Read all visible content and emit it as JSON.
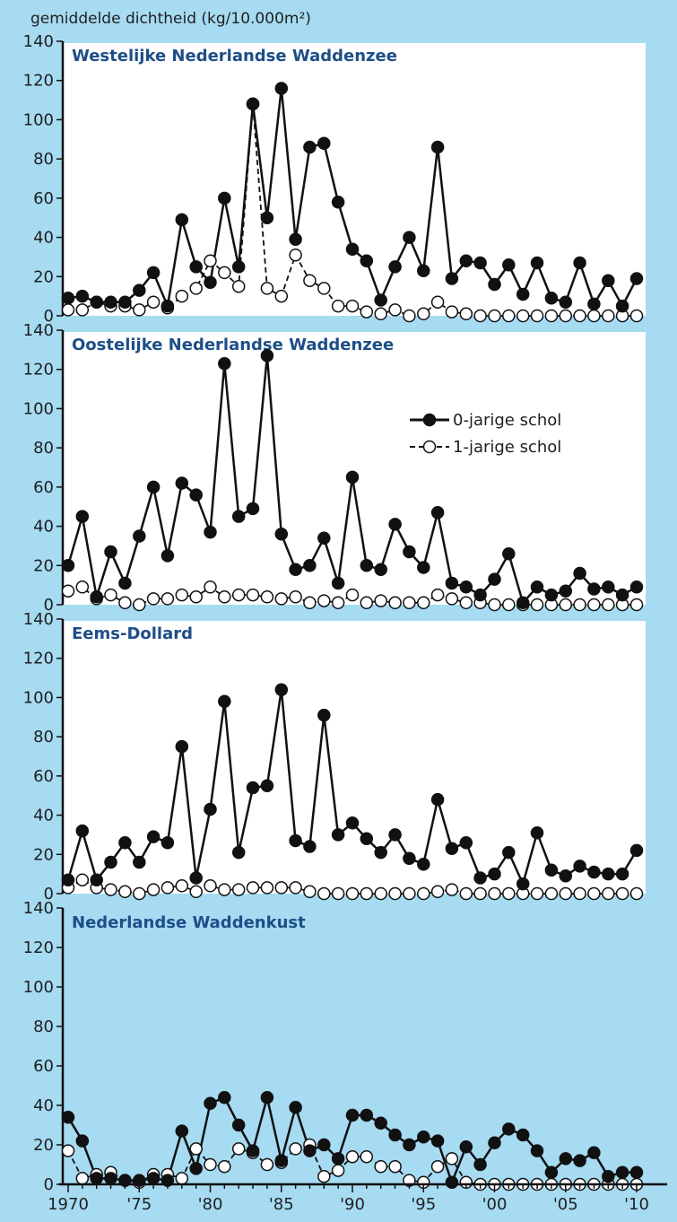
{
  "y_axis_title": "gemiddelde dichtheid (kg/10.000m²)",
  "colors": {
    "background": "#a6dbf2",
    "plot_bg": "#ffffff",
    "title": "#1d4e86",
    "line": "#111111"
  },
  "legend": {
    "series0": "0-jarige schol",
    "series1": "1-jarige schol"
  },
  "x_tick_labels": [
    "1970",
    "'75",
    "'80",
    "'85",
    "'90",
    "'95",
    "'00",
    "'05",
    "'10"
  ],
  "chart_data": [
    {
      "type": "line",
      "title": "Westelijke Nederlandse Waddenzee",
      "x": [
        1970,
        1971,
        1972,
        1973,
        1974,
        1975,
        1976,
        1977,
        1978,
        1979,
        1980,
        1981,
        1982,
        1983,
        1984,
        1985,
        1986,
        1987,
        1988,
        1989,
        1990,
        1991,
        1992,
        1993,
        1994,
        1995,
        1996,
        1997,
        1998,
        1999,
        2000,
        2001,
        2002,
        2003,
        2004,
        2005,
        2006,
        2007,
        2008,
        2009,
        2010
      ],
      "ylim": [
        0,
        140
      ],
      "yticks": [
        0,
        20,
        40,
        60,
        80,
        100,
        120,
        140
      ],
      "series": [
        {
          "name": "0-jarige schol",
          "values": [
            9,
            10,
            7,
            7,
            7,
            13,
            22,
            5,
            49,
            25,
            17,
            60,
            25,
            108,
            50,
            116,
            39,
            86,
            88,
            58,
            34,
            28,
            8,
            25,
            40,
            23,
            86,
            19,
            28,
            27,
            16,
            26,
            11,
            27,
            9,
            7,
            27,
            6,
            18,
            5,
            19
          ]
        },
        {
          "name": "1-jarige schol",
          "values": [
            3,
            3,
            7,
            5,
            5,
            3,
            7,
            4,
            10,
            14,
            28,
            22,
            15,
            108,
            14,
            10,
            31,
            18,
            14,
            5,
            5,
            2,
            1,
            3,
            0,
            1,
            7,
            2,
            1,
            0,
            0,
            0,
            0,
            0,
            0,
            0,
            0,
            0,
            0,
            0,
            0
          ]
        }
      ]
    },
    {
      "type": "line",
      "title": "Oostelijke Nederlandse Waddenzee",
      "x": [
        1970,
        1971,
        1972,
        1973,
        1974,
        1975,
        1976,
        1977,
        1978,
        1979,
        1980,
        1981,
        1982,
        1983,
        1984,
        1985,
        1986,
        1987,
        1988,
        1989,
        1990,
        1991,
        1992,
        1993,
        1994,
        1995,
        1996,
        1997,
        1998,
        1999,
        2000,
        2001,
        2002,
        2003,
        2004,
        2005,
        2006,
        2007,
        2008,
        2009,
        2010
      ],
      "ylim": [
        0,
        140
      ],
      "yticks": [
        0,
        20,
        40,
        60,
        80,
        100,
        120,
        140
      ],
      "series": [
        {
          "name": "0-jarige schol",
          "values": [
            20,
            45,
            4,
            27,
            11,
            35,
            60,
            25,
            62,
            56,
            37,
            123,
            45,
            49,
            127,
            36,
            18,
            20,
            34,
            11,
            65,
            20,
            18,
            41,
            27,
            19,
            47,
            11,
            9,
            5,
            13,
            26,
            1,
            9,
            5,
            7,
            16,
            8,
            9,
            5,
            9
          ]
        },
        {
          "name": "1-jarige schol",
          "values": [
            7,
            9,
            3,
            5,
            1,
            0,
            3,
            3,
            5,
            4,
            9,
            4,
            5,
            5,
            4,
            3,
            4,
            1,
            2,
            1,
            5,
            1,
            2,
            1,
            1,
            1,
            5,
            3,
            1,
            1,
            0,
            0,
            0,
            0,
            0,
            0,
            0,
            0,
            0,
            0,
            0
          ]
        }
      ]
    },
    {
      "type": "line",
      "title": "Eems-Dollard",
      "x": [
        1970,
        1971,
        1972,
        1973,
        1974,
        1975,
        1976,
        1977,
        1978,
        1979,
        1980,
        1981,
        1982,
        1983,
        1984,
        1985,
        1986,
        1987,
        1988,
        1989,
        1990,
        1991,
        1992,
        1993,
        1994,
        1995,
        1996,
        1997,
        1998,
        1999,
        2000,
        2001,
        2002,
        2003,
        2004,
        2005,
        2006,
        2007,
        2008,
        2009,
        2010
      ],
      "ylim": [
        0,
        140
      ],
      "yticks": [
        0,
        20,
        40,
        60,
        80,
        100,
        120,
        140
      ],
      "series": [
        {
          "name": "0-jarige schol",
          "values": [
            7,
            32,
            7,
            16,
            26,
            16,
            29,
            26,
            75,
            8,
            43,
            98,
            21,
            54,
            55,
            104,
            27,
            24,
            91,
            30,
            36,
            28,
            21,
            30,
            18,
            15,
            48,
            23,
            26,
            8,
            10,
            21,
            5,
            31,
            12,
            9,
            14,
            11,
            10,
            10,
            22
          ]
        },
        {
          "name": "1-jarige schol",
          "values": [
            3,
            7,
            3,
            2,
            1,
            0,
            2,
            3,
            4,
            1,
            4,
            2,
            2,
            3,
            3,
            3,
            3,
            1,
            0,
            0,
            0,
            0,
            0,
            0,
            0,
            0,
            1,
            2,
            0,
            0,
            0,
            0,
            0,
            0,
            0,
            0,
            0,
            0,
            0,
            0,
            0
          ]
        }
      ]
    },
    {
      "type": "line",
      "title": "Nederlandse Waddenkust",
      "x": [
        1970,
        1971,
        1972,
        1973,
        1974,
        1975,
        1976,
        1977,
        1978,
        1979,
        1980,
        1981,
        1982,
        1983,
        1984,
        1985,
        1986,
        1987,
        1988,
        1989,
        1990,
        1991,
        1992,
        1993,
        1994,
        1995,
        1996,
        1997,
        1998,
        1999,
        2000,
        2001,
        2002,
        2003,
        2004,
        2005,
        2006,
        2007,
        2008,
        2009,
        2010
      ],
      "ylim": [
        0,
        140
      ],
      "yticks": [
        0,
        20,
        40,
        60,
        80,
        100,
        120,
        140
      ],
      "series": [
        {
          "name": "0-jarige schol",
          "values": [
            34,
            22,
            3,
            3,
            2,
            2,
            3,
            2,
            27,
            8,
            41,
            44,
            30,
            17,
            44,
            12,
            39,
            17,
            20,
            13,
            35,
            35,
            31,
            25,
            20,
            24,
            22,
            1,
            19,
            10,
            21,
            28,
            25,
            17,
            6,
            13,
            12,
            16,
            4,
            6,
            6
          ]
        },
        {
          "name": "1-jarige schol",
          "values": [
            17,
            3,
            5,
            6,
            2,
            1,
            5,
            5,
            3,
            18,
            10,
            9,
            18,
            16,
            10,
            11,
            18,
            20,
            4,
            7,
            14,
            14,
            9,
            9,
            2,
            1,
            9,
            13,
            1,
            0,
            0,
            0,
            0,
            0,
            0,
            0,
            0,
            0,
            0,
            0,
            0
          ]
        }
      ]
    }
  ]
}
